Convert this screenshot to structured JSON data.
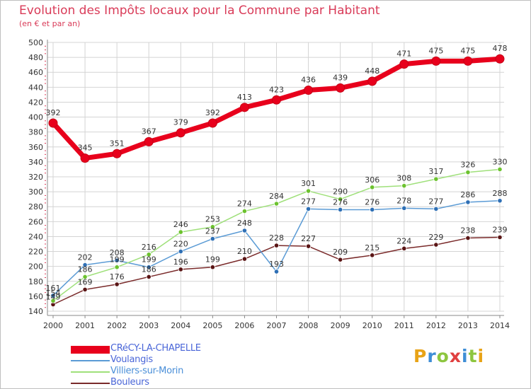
{
  "title": "Evolution des Impôts locaux pour la Commune par Habitant",
  "subtitle": "(en € et par an)",
  "brand": {
    "text": "Proxiti",
    "colors": [
      "#e8a317",
      "#3e8ed6",
      "#8dc63f",
      "#e04040",
      "#3e8ed6",
      "#8dc63f",
      "#e8a317"
    ]
  },
  "chart_data": {
    "type": "line",
    "x": [
      "2000",
      "2001",
      "2002",
      "2003",
      "2004",
      "2005",
      "2006",
      "2007",
      "2008",
      "2009",
      "2010",
      "2011",
      "2012",
      "2013",
      "2014"
    ],
    "ylim": [
      140,
      500
    ],
    "yticks": [
      "140",
      "160",
      "180",
      "200",
      "220",
      "240",
      "260",
      "280",
      "300",
      "320",
      "340",
      "360",
      "380",
      "400",
      "420",
      "440",
      "460",
      "480",
      "500"
    ],
    "grid": true,
    "legend": "bottom-left",
    "series": [
      {
        "name": "CRéCY-LA-CHAPELLE",
        "color": "#e8001c",
        "values": [
          392,
          345,
          351,
          367,
          379,
          392,
          413,
          423,
          436,
          439,
          448,
          471,
          475,
          475,
          478
        ],
        "labels": [
          "392",
          "345",
          "351",
          "367",
          "379",
          "392",
          "413",
          "423",
          "436",
          "439",
          "448",
          "471",
          "475",
          "475",
          "478"
        ]
      },
      {
        "name": "Voulangis",
        "color": "#5b9bd5",
        "values": [
          161,
          202,
          208,
          199,
          220,
          237,
          248,
          193,
          277,
          276,
          276,
          278,
          277,
          286,
          288
        ],
        "labels": [
          "161",
          "202",
          "208",
          "199",
          "220",
          "237",
          "248",
          "193",
          "277",
          "276",
          "276",
          "278",
          "277",
          "286",
          "288"
        ]
      },
      {
        "name": "Villiers-sur-Morin",
        "color": "#9fe07a",
        "values": [
          154,
          186,
          199,
          216,
          246,
          253,
          274,
          284,
          301,
          290,
          306,
          308,
          317,
          326,
          330
        ],
        "labels": [
          "154",
          "186",
          "199",
          "216",
          "246",
          "253",
          "274",
          "284",
          "301",
          "290",
          "306",
          "308",
          "317",
          "326",
          "330"
        ]
      },
      {
        "name": "Bouleurs",
        "color": "#7a2a2a",
        "values": [
          149,
          169,
          176,
          186,
          196,
          199,
          210,
          228,
          227,
          209,
          215,
          224,
          229,
          238,
          239
        ],
        "labels": [
          "149",
          "169",
          "176",
          "186",
          "196",
          "199",
          "210",
          "228",
          "227",
          "209",
          "215",
          "224",
          "229",
          "238",
          "239"
        ]
      }
    ]
  }
}
